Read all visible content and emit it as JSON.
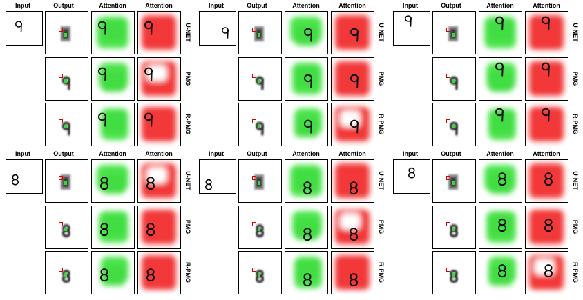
{
  "headers": [
    "Input",
    "Output",
    "Attention",
    "Attention"
  ],
  "row_labels": [
    "U-NET",
    "PMG",
    "R-PMG"
  ],
  "panels": [
    {
      "digit": "9"
    },
    {
      "digit": "9"
    },
    {
      "digit": "9"
    },
    {
      "digit": "8"
    },
    {
      "digit": "8"
    },
    {
      "digit": "8"
    }
  ],
  "colors": {
    "green_attention": "#2ee02e",
    "red_attention": "#f01818",
    "marker": "#e00000",
    "frame": "#000000"
  }
}
